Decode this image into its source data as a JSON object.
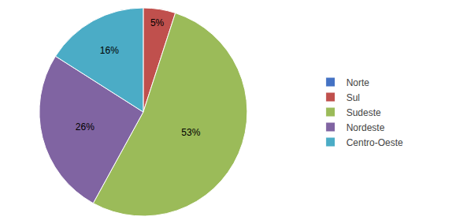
{
  "chart_data": {
    "type": "pie",
    "categories": [
      "Norte",
      "Sul",
      "Sudeste",
      "Nordeste",
      "Centro-Oeste"
    ],
    "values": [
      0,
      5,
      53,
      26,
      16
    ],
    "value_labels": [
      null,
      "5%",
      "53%",
      "26%",
      "16%"
    ],
    "colors": [
      "#4472C4",
      "#C0504D",
      "#9BBB59",
      "#8064A2",
      "#4BACC6"
    ],
    "data_labels": true,
    "legend": "right"
  }
}
